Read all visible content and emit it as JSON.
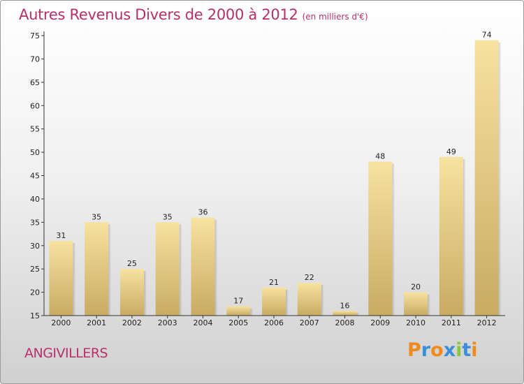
{
  "title": {
    "main": "Autres Revenus Divers de 2000 à 2012",
    "unit": "(en milliers d'€)"
  },
  "commune": "ANGIVILLERS",
  "logo": {
    "text": "Proxiti",
    "letter_colors": [
      "#f08a1c",
      "#3b8fd8",
      "#f08a1c",
      "#3b8fd8",
      "#8cc63f",
      "#3b8fd8",
      "#f08a1c"
    ]
  },
  "colors": {
    "title": "#b8306a",
    "bar_light": "#f7e2a0",
    "bar_dark": "#c9ab62"
  },
  "chart_data": {
    "type": "bar",
    "title": "Autres Revenus Divers de 2000 à 2012",
    "unit": "(en milliers d'€)",
    "categories": [
      "2000",
      "2001",
      "2002",
      "2003",
      "2004",
      "2005",
      "2006",
      "2007",
      "2008",
      "2009",
      "2010",
      "2011",
      "2012"
    ],
    "values": [
      31,
      35,
      25,
      35,
      36,
      17,
      21,
      22,
      16,
      48,
      20,
      49,
      74
    ],
    "ylim": [
      15,
      75
    ],
    "yticks": [
      15,
      20,
      25,
      30,
      35,
      40,
      45,
      50,
      55,
      60,
      65,
      70,
      75
    ],
    "grid": false,
    "legend": "none"
  }
}
